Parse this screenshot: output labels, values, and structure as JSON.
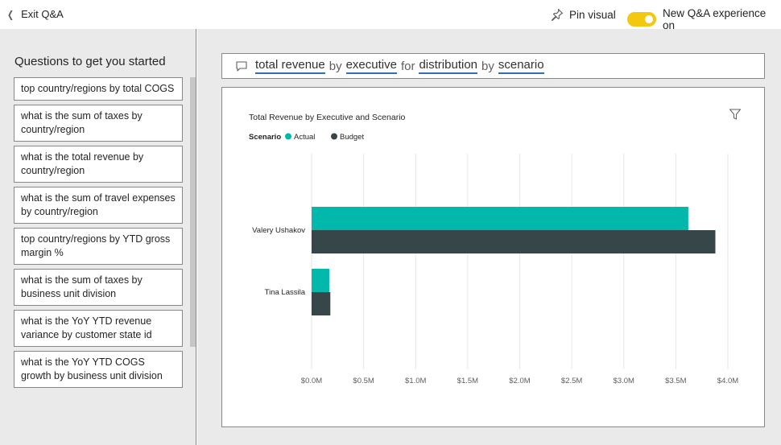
{
  "topbar": {
    "exit_label": "Exit Q&A",
    "pin_label": "Pin visual",
    "toggle_label": "New Q&A experience on",
    "toggle_color": "#F2C811"
  },
  "sidebar": {
    "title": "Questions to get you started",
    "questions": [
      "top country/regions by total COGS",
      "what is the sum of taxes by country/region",
      "what is the total revenue by country/region",
      "what is the sum of travel expenses by country/region",
      "top country/regions by YTD gross margin %",
      "what is the sum of taxes by business unit division",
      "what is the YoY YTD revenue variance by customer state id",
      "what is the YoY YTD COGS growth by business unit division"
    ]
  },
  "query": {
    "tokens": [
      {
        "text": "total revenue",
        "linked": true
      },
      {
        "text": "by",
        "linked": false
      },
      {
        "text": "executive",
        "linked": true
      },
      {
        "text": "for",
        "linked": false
      },
      {
        "text": "distribution",
        "linked": true
      },
      {
        "text": "by",
        "linked": false
      },
      {
        "text": "scenario",
        "linked": true
      }
    ]
  },
  "chart_data": {
    "type": "bar",
    "orientation": "horizontal",
    "title": "Total Revenue by Executive and Scenario",
    "legend_title": "Scenario",
    "legend_position": "top-left",
    "categories": [
      "Valery Ushakov",
      "Tina Lassila"
    ],
    "series": [
      {
        "name": "Actual",
        "color": "#01B8AA",
        "values": [
          3.62,
          0.17
        ]
      },
      {
        "name": "Budget",
        "color": "#374649",
        "values": [
          3.88,
          0.18
        ]
      }
    ],
    "xlim": [
      0,
      4.0
    ],
    "x_ticks": [
      0,
      0.5,
      1.0,
      1.5,
      2.0,
      2.5,
      3.0,
      3.5,
      4.0
    ],
    "x_tick_labels": [
      "$0.0M",
      "$0.5M",
      "$1.0M",
      "$1.5M",
      "$2.0M",
      "$2.5M",
      "$3.0M",
      "$3.5M",
      "$4.0M"
    ],
    "grid": true
  }
}
